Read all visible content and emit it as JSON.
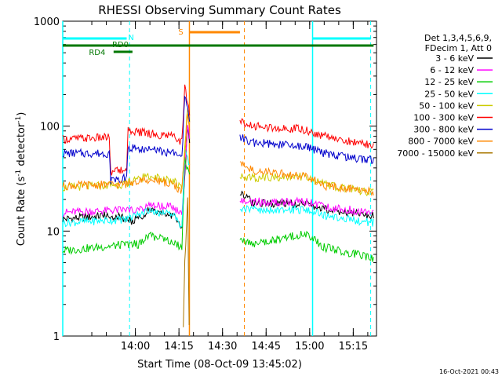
{
  "chart_data": {
    "type": "line",
    "title": "RHESSI Observing Summary Count Rates",
    "xlabel": "Start Time (08-Oct-09 13:45:02)",
    "ylabel_main": "Count Rate (s",
    "ylabel_sup": "-1",
    "ylabel_rest": " detector",
    "ylabel_end": ")",
    "y_scale": "log",
    "ylim": [
      1,
      1000
    ],
    "xlim_min": [
      -10,
      98
    ],
    "x_ticks": [
      {
        "min": 15,
        "label": "14:00"
      },
      {
        "min": 30,
        "label": "14:15"
      },
      {
        "min": 45,
        "label": "14:30"
      },
      {
        "min": 60,
        "label": "14:45"
      },
      {
        "min": 75,
        "label": "15:00"
      },
      {
        "min": 90,
        "label": "15:15"
      }
    ],
    "y_ticks": [
      {
        "value": 1,
        "label": "1"
      },
      {
        "value": 10,
        "label": "10"
      },
      {
        "value": 100,
        "label": "100"
      },
      {
        "value": 1000,
        "label": "1000"
      }
    ],
    "legend_header": [
      "Det 1,3,4,5,6,9,",
      "FDecim 1, Att 0"
    ],
    "legend_position": "right",
    "series": [
      {
        "name": "3 - 6 keV",
        "color": "#000000",
        "points": [
          [
            -10,
            13
          ],
          [
            4,
            14
          ],
          [
            8,
            14
          ],
          [
            14,
            12.5
          ],
          [
            16,
            13
          ],
          [
            20,
            16
          ],
          [
            28,
            14
          ],
          [
            31,
            11
          ],
          [
            33,
            100
          ],
          [
            34,
            60
          ],
          [
            47,
            null
          ],
          [
            51,
            24
          ],
          [
            55,
            19
          ],
          [
            70,
            18
          ],
          [
            74,
            18
          ],
          [
            80,
            16
          ],
          [
            97,
            14
          ]
        ]
      },
      {
        "name": "6 - 12 keV",
        "color": "#ff00ff",
        "points": [
          [
            -10,
            15
          ],
          [
            13,
            16
          ],
          [
            16,
            16
          ],
          [
            20,
            18
          ],
          [
            28,
            17
          ],
          [
            31,
            14
          ],
          [
            33,
            100
          ],
          [
            34,
            60
          ],
          [
            47,
            null
          ],
          [
            51,
            20
          ],
          [
            55,
            19
          ],
          [
            70,
            19
          ],
          [
            74,
            19
          ],
          [
            80,
            17
          ],
          [
            97,
            15
          ]
        ]
      },
      {
        "name": "12 - 25 keV",
        "color": "#00cc00",
        "points": [
          [
            -10,
            6.5
          ],
          [
            13,
            7.5
          ],
          [
            16,
            7.5
          ],
          [
            20,
            9
          ],
          [
            28,
            8
          ],
          [
            31,
            7
          ],
          [
            32,
            50
          ],
          [
            34,
            30
          ],
          [
            47,
            null
          ],
          [
            51,
            8
          ],
          [
            55,
            7.5
          ],
          [
            70,
            9
          ],
          [
            74,
            9.5
          ],
          [
            80,
            7
          ],
          [
            97,
            5.5
          ]
        ]
      },
      {
        "name": "25 - 50 keV",
        "color": "#00ffff",
        "points": [
          [
            -10,
            12
          ],
          [
            13,
            13
          ],
          [
            16,
            14
          ],
          [
            20,
            16
          ],
          [
            28,
            14
          ],
          [
            31,
            11
          ],
          [
            32,
            60
          ],
          [
            34,
            40
          ],
          [
            47,
            null
          ],
          [
            51,
            17
          ],
          [
            55,
            16
          ],
          [
            70,
            16
          ],
          [
            74,
            16
          ],
          [
            80,
            14
          ],
          [
            97,
            12
          ]
        ]
      },
      {
        "name": "50 - 100 keV",
        "color": "#cccc00",
        "points": [
          [
            -10,
            26
          ],
          [
            12,
            28
          ],
          [
            16,
            32
          ],
          [
            20,
            34
          ],
          [
            28,
            30
          ],
          [
            31,
            26
          ],
          [
            33,
            150
          ],
          [
            34,
            80
          ],
          [
            47,
            null
          ],
          [
            51,
            34
          ],
          [
            55,
            32
          ],
          [
            70,
            33
          ],
          [
            74,
            33
          ],
          [
            80,
            28
          ],
          [
            97,
            23
          ]
        ]
      },
      {
        "name": "100 - 300 keV",
        "color": "#ff0000",
        "points": [
          [
            -10,
            75
          ],
          [
            6,
            78
          ],
          [
            6.5,
            37
          ],
          [
            12,
            38
          ],
          [
            12.5,
            90
          ],
          [
            20,
            85
          ],
          [
            28,
            80
          ],
          [
            31,
            70
          ],
          [
            32,
            230
          ],
          [
            34,
            120
          ],
          [
            47,
            null
          ],
          [
            51,
            110
          ],
          [
            55,
            100
          ],
          [
            70,
            95
          ],
          [
            74,
            90
          ],
          [
            80,
            80
          ],
          [
            97,
            65
          ]
        ]
      },
      {
        "name": "300 - 800 keV",
        "color": "#0000cc",
        "points": [
          [
            -10,
            55
          ],
          [
            6,
            55
          ],
          [
            6.5,
            30
          ],
          [
            12,
            32
          ],
          [
            12.5,
            62
          ],
          [
            20,
            60
          ],
          [
            28,
            55
          ],
          [
            31,
            50
          ],
          [
            32,
            190
          ],
          [
            34,
            100
          ],
          [
            47,
            null
          ],
          [
            51,
            80
          ],
          [
            55,
            70
          ],
          [
            70,
            65
          ],
          [
            74,
            63
          ],
          [
            80,
            55
          ],
          [
            97,
            47
          ]
        ]
      },
      {
        "name": "800 - 7000 keV",
        "color": "#ff8800",
        "points": [
          [
            -10,
            27
          ],
          [
            13,
            28
          ],
          [
            16,
            30
          ],
          [
            20,
            31
          ],
          [
            28,
            28
          ],
          [
            31,
            24
          ],
          [
            33,
            130
          ],
          [
            34,
            70
          ],
          [
            47,
            null
          ],
          [
            51,
            45
          ],
          [
            55,
            38
          ],
          [
            70,
            34
          ],
          [
            74,
            33
          ],
          [
            80,
            27
          ],
          [
            97,
            24
          ]
        ]
      },
      {
        "name": "7000 - 15000 keV",
        "color": "#aa7700",
        "points": [
          [
            -10,
            null
          ],
          [
            31.5,
            1.3
          ],
          [
            32,
            5
          ],
          [
            33,
            20
          ],
          [
            33.5,
            1.2
          ]
        ]
      }
    ],
    "annotations": [
      {
        "text": "N",
        "color": "#00ffff"
      },
      {
        "text": "S",
        "color": "#ff8800"
      },
      {
        "text": "RD0",
        "color": "#007700"
      },
      {
        "text": "RD4",
        "color": "#007700"
      }
    ],
    "timestamp": "16-Oct-2021 00:43"
  }
}
